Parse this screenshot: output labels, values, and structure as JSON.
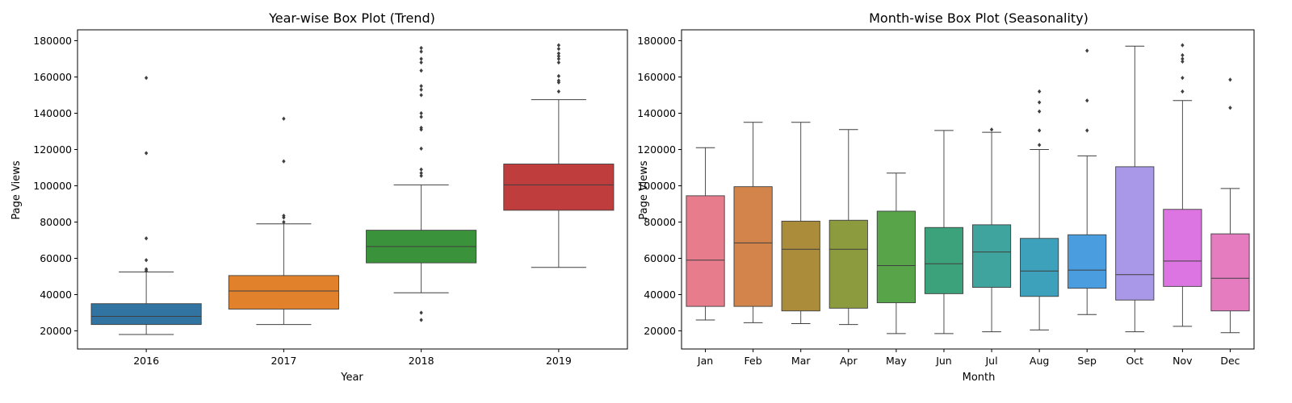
{
  "chart_data": [
    {
      "type": "box",
      "title": "Year-wise Box Plot (Trend)",
      "xlabel": "Year",
      "ylabel": "Page Views",
      "ylim": [
        10000,
        186000
      ],
      "yticks": [
        20000,
        40000,
        60000,
        80000,
        100000,
        120000,
        140000,
        160000,
        180000
      ],
      "categories": [
        "2016",
        "2017",
        "2018",
        "2019"
      ],
      "colors": [
        "#3274a1",
        "#e1812c",
        "#3a923a",
        "#c03d3e"
      ],
      "boxes": [
        {
          "whisker_low": 18000,
          "q1": 23500,
          "median": 28000,
          "q3": 35000,
          "whisker_high": 52500,
          "outliers": [
            53000,
            54000,
            59000,
            71000,
            118000,
            159500
          ]
        },
        {
          "whisker_low": 23500,
          "q1": 32000,
          "median": 42000,
          "q3": 50500,
          "whisker_high": 79000,
          "outliers": [
            80000,
            82500,
            83500,
            113500,
            137000
          ]
        },
        {
          "whisker_low": 41000,
          "q1": 57500,
          "median": 66500,
          "q3": 75500,
          "whisker_high": 100500,
          "outliers": [
            26000,
            30000,
            105500,
            107000,
            109000,
            120500,
            131000,
            132000,
            138000,
            140000,
            150000,
            153000,
            155000,
            163500,
            168000,
            170000,
            174000,
            176000
          ]
        },
        {
          "whisker_low": 55000,
          "q1": 86500,
          "median": 100500,
          "q3": 112000,
          "whisker_high": 147500,
          "outliers": [
            152000,
            157000,
            158000,
            160500,
            168000,
            170000,
            171500,
            173000,
            175500,
            177500
          ]
        }
      ]
    },
    {
      "type": "box",
      "title": "Month-wise Box Plot (Seasonality)",
      "xlabel": "Month",
      "ylabel": "Page Views",
      "ylim": [
        10000,
        186000
      ],
      "yticks": [
        20000,
        40000,
        60000,
        80000,
        100000,
        120000,
        140000,
        160000,
        180000
      ],
      "categories": [
        "Jan",
        "Feb",
        "Mar",
        "Apr",
        "May",
        "Jun",
        "Jul",
        "Aug",
        "Sep",
        "Oct",
        "Nov",
        "Dec"
      ],
      "colors": [
        "#e77c8d",
        "#d3844a",
        "#aa8c3a",
        "#8c9b3e",
        "#57a548",
        "#3ba27b",
        "#3ea49d",
        "#3ea1bc",
        "#4a9ee0",
        "#a998e7",
        "#dc74e1",
        "#e57cc0"
      ],
      "boxes": [
        {
          "whisker_low": 26000,
          "q1": 33500,
          "median": 59000,
          "q3": 94500,
          "whisker_high": 121000,
          "outliers": []
        },
        {
          "whisker_low": 24500,
          "q1": 33500,
          "median": 68500,
          "q3": 99500,
          "whisker_high": 135000,
          "outliers": []
        },
        {
          "whisker_low": 24000,
          "q1": 31000,
          "median": 65000,
          "q3": 80500,
          "whisker_high": 135000,
          "outliers": []
        },
        {
          "whisker_low": 23500,
          "q1": 32500,
          "median": 65000,
          "q3": 81000,
          "whisker_high": 131000,
          "outliers": []
        },
        {
          "whisker_low": 18500,
          "q1": 35500,
          "median": 56000,
          "q3": 86000,
          "whisker_high": 107000,
          "outliers": []
        },
        {
          "whisker_low": 18500,
          "q1": 40500,
          "median": 57000,
          "q3": 77000,
          "whisker_high": 130500,
          "outliers": []
        },
        {
          "whisker_low": 19500,
          "q1": 44000,
          "median": 63500,
          "q3": 78500,
          "whisker_high": 129500,
          "outliers": [
            131000
          ]
        },
        {
          "whisker_low": 20500,
          "q1": 39000,
          "median": 53000,
          "q3": 71000,
          "whisker_high": 120000,
          "outliers": [
            122500,
            130500,
            141000,
            146000,
            152000
          ]
        },
        {
          "whisker_low": 29000,
          "q1": 43500,
          "median": 53500,
          "q3": 73000,
          "whisker_high": 116500,
          "outliers": [
            130500,
            147000,
            174500
          ]
        },
        {
          "whisker_low": 19500,
          "q1": 37000,
          "median": 51000,
          "q3": 110500,
          "whisker_high": 177000,
          "outliers": []
        },
        {
          "whisker_low": 22500,
          "q1": 44500,
          "median": 58500,
          "q3": 87000,
          "whisker_high": 147000,
          "outliers": [
            152000,
            159500,
            168500,
            170000,
            172000,
            177500
          ]
        },
        {
          "whisker_low": 19000,
          "q1": 31000,
          "median": 49000,
          "q3": 73500,
          "whisker_high": 98500,
          "outliers": [
            143000,
            158500
          ]
        }
      ]
    }
  ]
}
